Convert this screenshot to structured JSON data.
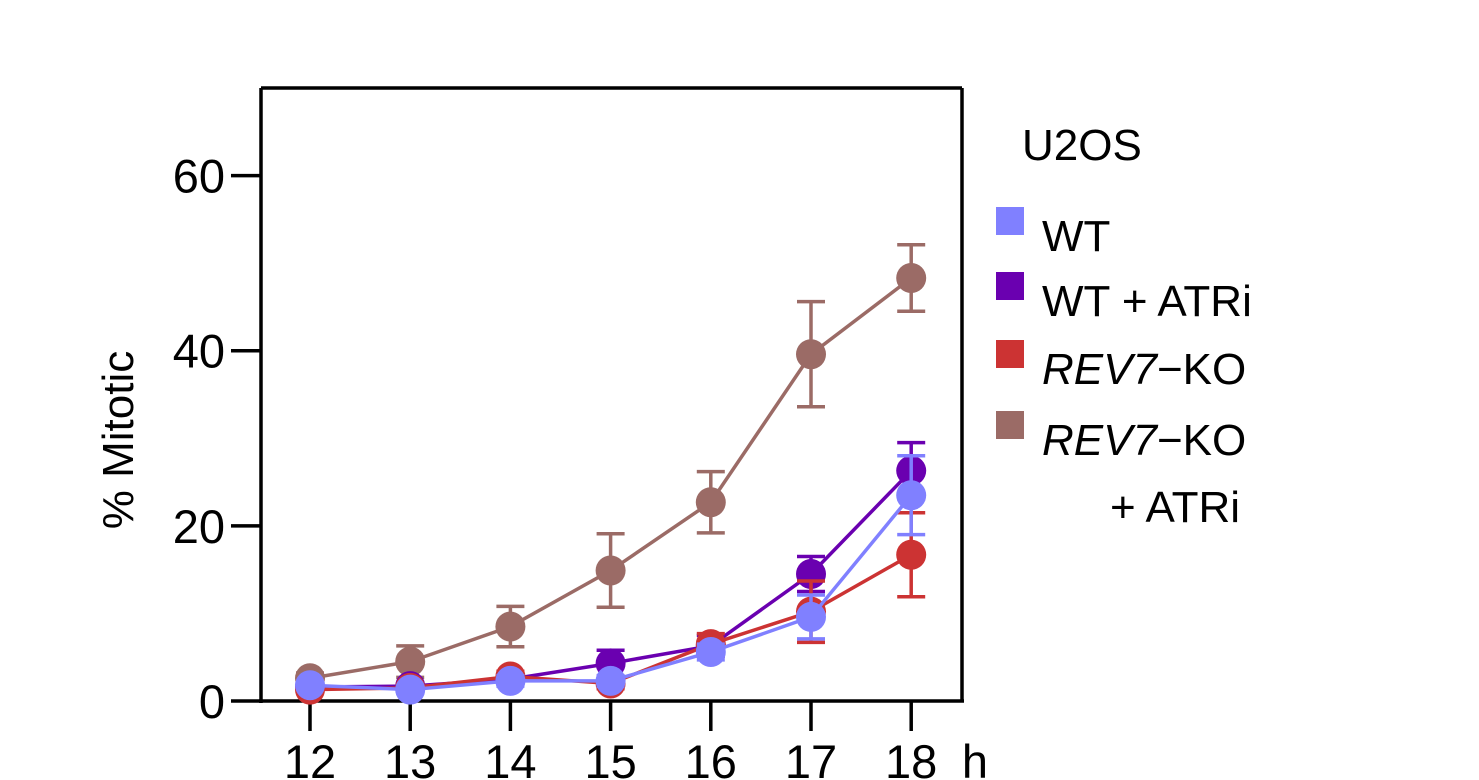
{
  "chart_data": {
    "type": "line",
    "title": "",
    "xlabel": "",
    "x_unit": "h",
    "ylabel": "% Mitotic",
    "x": [
      12,
      13,
      14,
      15,
      16,
      17,
      18
    ],
    "x_tick_labels": [
      "12",
      "13",
      "14",
      "15",
      "16",
      "17",
      "18"
    ],
    "ylim": [
      0,
      70
    ],
    "y_ticks": [
      0,
      20,
      40,
      60
    ],
    "y_tick_labels": [
      "0",
      "20",
      "40",
      "60"
    ],
    "grid": false,
    "legend_title": "U2OS",
    "legend_position": "right",
    "series": [
      {
        "name": "WT",
        "legend_parts": [
          {
            "text": "WT",
            "italic": false
          }
        ],
        "color": "#8080ff",
        "values": [
          1.8,
          1.3,
          2.3,
          2.3,
          5.6,
          9.6,
          23.5
        ],
        "errors": [
          0.4,
          0.4,
          0.6,
          0.6,
          0.9,
          2.5,
          4.5
        ]
      },
      {
        "name": "WT + ATRi",
        "legend_parts": [
          {
            "text": "WT + ATRi",
            "italic": false
          }
        ],
        "color": "#6a00b0",
        "values": [
          1.6,
          1.7,
          2.5,
          4.3,
          6.3,
          14.5,
          26.3
        ],
        "errors": [
          0.4,
          0.4,
          0.6,
          1.5,
          1.2,
          2.0,
          3.2
        ]
      },
      {
        "name": "REV7−KO",
        "legend_parts": [
          {
            "text": "REV7",
            "italic": true
          },
          {
            "text": "−KO",
            "italic": false
          }
        ],
        "color": "#cc3333",
        "values": [
          1.3,
          1.5,
          2.8,
          2.0,
          6.5,
          10.2,
          16.7
        ],
        "errors": [
          0.4,
          0.4,
          0.6,
          0.6,
          1.2,
          3.5,
          4.8
        ]
      },
      {
        "name": "REV7−KO + ATRi",
        "legend_parts": [
          {
            "text": "REV7",
            "italic": true
          },
          {
            "text": "−KO",
            "italic": false
          }
        ],
        "legend_line2": "+ ATRi",
        "color": "#9b6b66",
        "values": [
          2.6,
          4.5,
          8.5,
          14.9,
          22.7,
          39.6,
          48.3
        ],
        "errors": [
          0.6,
          1.8,
          2.3,
          4.2,
          3.5,
          6.0,
          3.8
        ]
      }
    ]
  }
}
